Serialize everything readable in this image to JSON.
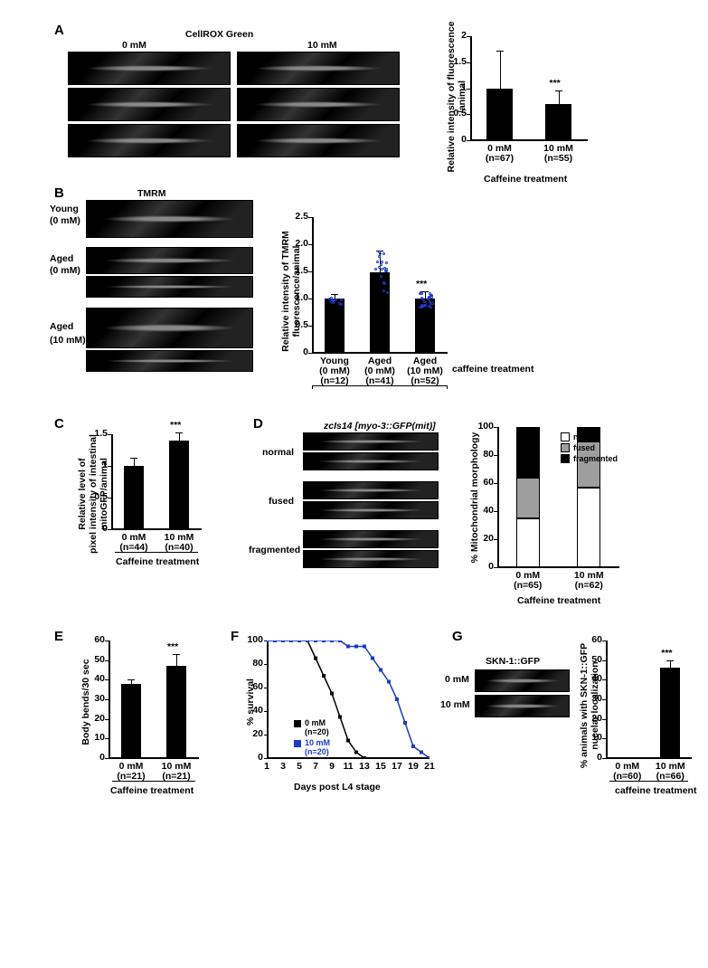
{
  "panelA": {
    "label": "A",
    "header": "CellROX Green",
    "cols": [
      "0 mM",
      "10 mM"
    ],
    "chart": {
      "type": "bar",
      "ylabel": "Relative intensity of fluorescence\\n/animal",
      "ylim_max": 2,
      "yticks": [
        "0",
        "0.5",
        "1",
        "1.5",
        "2"
      ],
      "bars": [
        {
          "label": "0 mM",
          "n": "(n=67)",
          "value": 1.0,
          "err": 0.72
        },
        {
          "label": "10 mM",
          "n": "(n=55)",
          "value": 0.7,
          "err": 0.25
        }
      ],
      "sig": "***",
      "xlabel": "Caffeine treatment",
      "bar_color": "#000000"
    }
  },
  "panelB": {
    "label": "B",
    "header": "TMRM",
    "rows": [
      "Young",
      "(0 mM)",
      "Aged",
      "(0 mM)",
      "Aged",
      "(10 mM)"
    ],
    "chart": {
      "type": "bar",
      "ylabel": "Relative intensity of TMRM\\nfluorescence/animal",
      "ylim_max": 2.5,
      "yticks": [
        "0",
        "0.5",
        "1.0",
        "1.5",
        "2.0",
        "2.5"
      ],
      "bars": [
        {
          "l1": "Young",
          "l2": "(0 mM)",
          "n": "(n=12)",
          "value": 1.0,
          "err": 0.08
        },
        {
          "l1": "Aged",
          "l2": "(0 mM)",
          "n": "(n=41)",
          "value": 1.48,
          "err": 0.4
        },
        {
          "l1": "Aged",
          "l2": "(10 mM)",
          "n": "(n=52)",
          "value": 1.0,
          "err": 0.13
        }
      ],
      "sig": "***",
      "xlabel": "caffeine treatment",
      "bar_color": "#000000"
    }
  },
  "panelC": {
    "label": "C",
    "chart": {
      "type": "bar",
      "ylabel": "Relative level of\\npixel intensity of intestinal\\nmitoGFP/animal",
      "ylim_max": 1.5,
      "yticks": [
        "0",
        "0.5",
        "1",
        "1.5"
      ],
      "bars": [
        {
          "label": "0 mM",
          "n": "(n=44)",
          "value": 1.0,
          "err": 0.13
        },
        {
          "label": "10 mM",
          "n": "(n=40)",
          "value": 1.4,
          "err": 0.13
        }
      ],
      "sig": "***",
      "xlabel": "Caffeine treatment",
      "bar_color": "#000000"
    }
  },
  "panelD": {
    "label": "D",
    "strain": "zcIs14 [myo-3::GFP(mit)]",
    "rows": [
      "normal",
      "fused",
      "fragmented"
    ],
    "chart": {
      "type": "stacked-bar",
      "ylabel": "% Mitochondrial morphology",
      "yticks": [
        "0",
        "20",
        "40",
        "60",
        "80",
        "100"
      ],
      "legend": [
        {
          "name": "normal",
          "color": "#ffffff"
        },
        {
          "name": "fused",
          "color": "#9e9e9e"
        },
        {
          "name": "fragmented",
          "color": "#000000"
        }
      ],
      "bars": [
        {
          "label": "0 mM",
          "n": "(n=65)",
          "normal": 35,
          "fused": 29,
          "fragmented": 36
        },
        {
          "label": "10 mM",
          "n": "(n=62)",
          "normal": 57,
          "fused": 33,
          "fragmented": 10
        }
      ],
      "xlabel": "Caffeine treatment"
    }
  },
  "panelE": {
    "label": "E",
    "chart": {
      "type": "bar",
      "ylabel": "Body bends/30 sec",
      "ylim_max": 60,
      "yticks": [
        "0",
        "10",
        "20",
        "30",
        "40",
        "50",
        "60"
      ],
      "bars": [
        {
          "label": "0 mM",
          "n": "(n=21)",
          "value": 38,
          "err": 2
        },
        {
          "label": "10 mM",
          "n": "(n=21)",
          "value": 47,
          "err": 6
        }
      ],
      "sig": "***",
      "xlabel": "Caffeine treatment",
      "bar_color": "#000000"
    }
  },
  "panelF": {
    "label": "F",
    "chart": {
      "type": "line",
      "ylabel": "% survival",
      "xlabel": "Days post L4 stage",
      "yticks": [
        "0",
        "20",
        "40",
        "60",
        "80",
        "100"
      ],
      "xticks": [
        "1",
        "3",
        "5",
        "7",
        "9",
        "11",
        "13",
        "15",
        "17",
        "19",
        "21"
      ],
      "series": [
        {
          "name": "0 mM",
          "n": "(n=20)",
          "color": "#000000",
          "points": [
            [
              1,
              100
            ],
            [
              2,
              100
            ],
            [
              3,
              100
            ],
            [
              4,
              100
            ],
            [
              5,
              100
            ],
            [
              6,
              100
            ],
            [
              7,
              85
            ],
            [
              8,
              70
            ],
            [
              9,
              55
            ],
            [
              10,
              35
            ],
            [
              11,
              15
            ],
            [
              12,
              5
            ],
            [
              13,
              0
            ]
          ]
        },
        {
          "name": "10 mM",
          "n": "(n=20)",
          "color": "#1a3ac9",
          "points": [
            [
              1,
              100
            ],
            [
              2,
              100
            ],
            [
              3,
              100
            ],
            [
              4,
              100
            ],
            [
              5,
              100
            ],
            [
              6,
              100
            ],
            [
              7,
              100
            ],
            [
              8,
              100
            ],
            [
              9,
              100
            ],
            [
              10,
              100
            ],
            [
              11,
              95
            ],
            [
              12,
              95
            ],
            [
              13,
              95
            ],
            [
              14,
              85
            ],
            [
              15,
              75
            ],
            [
              16,
              65
            ],
            [
              17,
              50
            ],
            [
              18,
              30
            ],
            [
              19,
              10
            ],
            [
              20,
              5
            ],
            [
              21,
              0
            ]
          ]
        }
      ]
    }
  },
  "panelG": {
    "label": "G",
    "header": "SKN-1::GFP",
    "rows": [
      "0 mM",
      "10 mM"
    ],
    "chart": {
      "type": "bar",
      "ylabel": "% animals with SKN-1::GFP\\nnucelar localization",
      "ylim_max": 60,
      "yticks": [
        "0",
        "10",
        "20",
        "30",
        "40",
        "50",
        "60"
      ],
      "bars": [
        {
          "label": "0 mM",
          "n": "(n=60)",
          "value": 0,
          "err": 0
        },
        {
          "label": "10 mM",
          "n": "(n=66)",
          "value": 46,
          "err": 4
        }
      ],
      "sig": "***",
      "xlabel": "caffeine treatment",
      "bar_color": "#000000"
    }
  }
}
